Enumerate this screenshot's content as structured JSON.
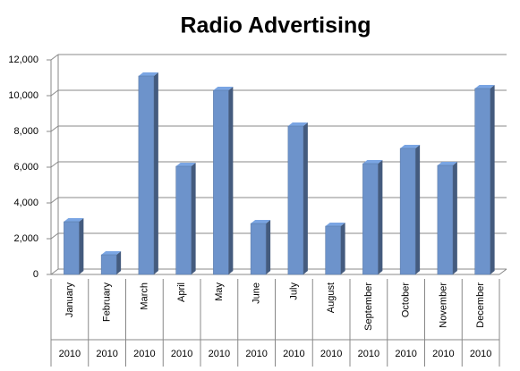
{
  "chart_data": {
    "type": "bar",
    "title": "Radio Advertising",
    "categories": [
      "January",
      "February",
      "March",
      "April",
      "May",
      "June",
      "July",
      "August",
      "September",
      "October",
      "November",
      "December"
    ],
    "category_groups": [
      "2010",
      "2010",
      "2010",
      "2010",
      "2010",
      "2010",
      "2010",
      "2010",
      "2010",
      "2010",
      "2010",
      "2010"
    ],
    "values": [
      2950,
      1100,
      11100,
      6050,
      10300,
      2850,
      8300,
      2700,
      6200,
      7050,
      6100,
      10400
    ],
    "color": "#6d93cb",
    "ylim": [
      0,
      12000
    ],
    "yticks": [
      0,
      {
        "value": 2000,
        "label": "2,000"
      },
      {
        "value": 4000,
        "label": "4,000"
      },
      {
        "value": 6000,
        "label": "6,000"
      },
      {
        "value": 8000,
        "label": "8,000"
      },
      {
        "value": 10000,
        "label": "10,000"
      },
      {
        "value": 12000,
        "label": "12,000"
      }
    ],
    "grid": true
  }
}
